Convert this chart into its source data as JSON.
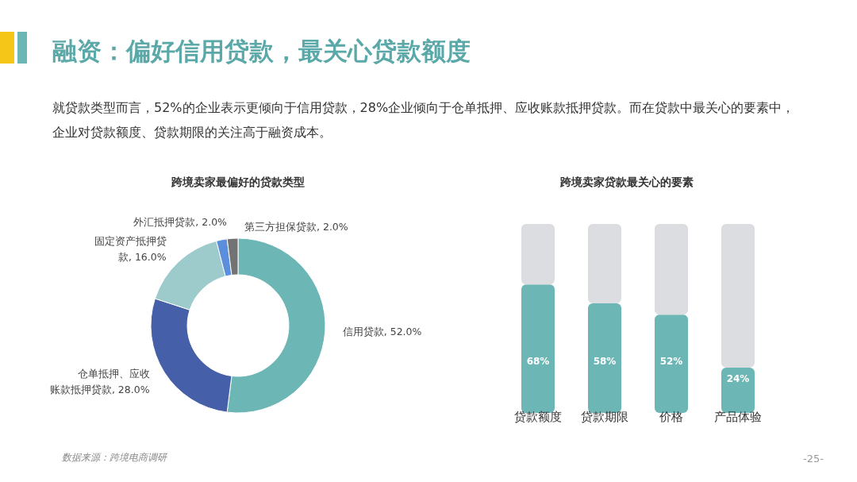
{
  "chart_data": [
    {
      "type": "other",
      "title": "融资：偏好信用贷款，最关心贷款额度",
      "subtitle": "就贷款类型而言，52%的企业表示更倾向于信用贷款，28%企业倾向于仓单抵押、应收账款抵押贷款。而在贷款中最关心的要素中，企业对贷款额度、贷款期限的关注高于融资成本。",
      "annotations": [
        "数据来源：跨境电商调研",
        "-25-"
      ]
    },
    {
      "type": "donut",
      "title": "跨境卖家最偏好的贷款类型",
      "categories": [
        "信用贷款",
        "仓单抵押、应收账款抵押贷款",
        "固定资产抵押贷款",
        "外汇抵押贷款",
        "第三方担保贷款"
      ],
      "values": [
        52,
        28,
        16,
        2,
        2
      ],
      "value_labels": [
        "52.0%",
        "28.0%",
        "16.0%",
        "2.0%",
        "2.0%"
      ],
      "colors": [
        "#6cb6b6",
        "#4560a8",
        "#9dcbcb",
        "#5b8fdc",
        "#737373"
      ]
    },
    {
      "type": "bar",
      "title": "跨境卖家贷款最关心的要素",
      "categories": [
        "贷款额度",
        "贷款期限",
        "价格",
        "产品体验"
      ],
      "stacked": true,
      "ylim": [
        0,
        100
      ],
      "tick_labels": "x",
      "series": [
        {
          "color": "#6cb6b6",
          "values": [
            68,
            58,
            52,
            24
          ],
          "value_labels": [
            "68%",
            "58%",
            "52%",
            "24%"
          ]
        },
        {
          "color": "#dcdde0",
          "values": [
            32,
            42,
            48,
            76
          ]
        }
      ]
    }
  ]
}
